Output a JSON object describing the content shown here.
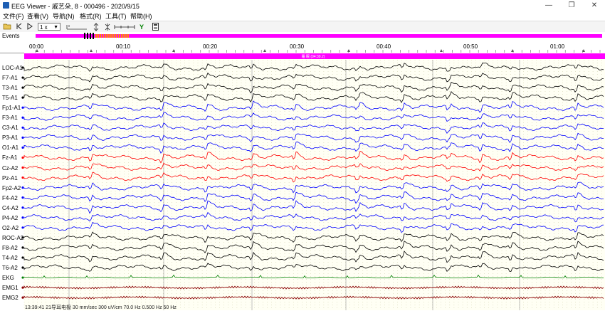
{
  "window": {
    "title": "EEG Viewer - 戚艺朵, 8 - 000496 - 2020/9/15",
    "minimize": "—",
    "restore": "❐",
    "close": "✕"
  },
  "menu": [
    "文件(F)",
    "查看(V)",
    "导航(N)",
    "格式(R)",
    "工具(T)",
    "帮助(H)"
  ],
  "toolbar": {
    "speed_value": "1 x"
  },
  "events": {
    "label": "Events",
    "bar_color": "#ff00ff",
    "marker_text": "睡 眠 (04:39.2)"
  },
  "ruler": {
    "ticks": [
      "00:00",
      "00:10",
      "00:20",
      "00:30",
      "00:40",
      "00:50",
      "01:00"
    ]
  },
  "channels": [
    {
      "label": "LOC-A1",
      "color": "#000000"
    },
    {
      "label": "F7-A1",
      "color": "#000000"
    },
    {
      "label": "T3-A1",
      "color": "#000000"
    },
    {
      "label": "T5-A1",
      "color": "#000000"
    },
    {
      "label": "Fp1-A1",
      "color": "#0000ff"
    },
    {
      "label": "F3-A1",
      "color": "#0000ff"
    },
    {
      "label": "C3-A1",
      "color": "#0000ff"
    },
    {
      "label": "P3-A1",
      "color": "#0000ff"
    },
    {
      "label": "O1-A1",
      "color": "#0000ff"
    },
    {
      "label": "Fz-A1",
      "color": "#ff0000"
    },
    {
      "label": "Cz-A2",
      "color": "#ff0000"
    },
    {
      "label": "Pz-A1",
      "color": "#ff0000"
    },
    {
      "label": "Fp2-A2",
      "color": "#0000ff"
    },
    {
      "label": "F4-A2",
      "color": "#0000ff"
    },
    {
      "label": "C4-A2",
      "color": "#0000ff"
    },
    {
      "label": "P4-A2",
      "color": "#0000ff"
    },
    {
      "label": "O2-A2",
      "color": "#0000ff"
    },
    {
      "label": "ROC-A2",
      "color": "#000000"
    },
    {
      "label": "F8-A2",
      "color": "#000000"
    },
    {
      "label": "T4-A2",
      "color": "#000000"
    },
    {
      "label": "T6-A2",
      "color": "#000000"
    },
    {
      "label": "EKG",
      "color": "#008000"
    },
    {
      "label": "EMG1",
      "color": "#8b0000"
    },
    {
      "label": "EMG2",
      "color": "#8b0000"
    }
  ],
  "status": {
    "text": "13:39:41 21导耳电极 30 mm/sec 300 uV/cm 70.0 Hz 0.500 Hz 50 Hz"
  }
}
